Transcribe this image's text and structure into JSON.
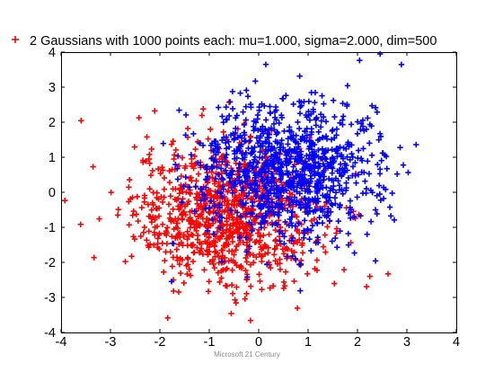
{
  "chart_data": {
    "type": "scatter",
    "title": "",
    "xlabel": "",
    "ylabel": "",
    "xlim": [
      -4,
      4
    ],
    "ylim": [
      -4,
      4
    ],
    "xticks": [
      "-4",
      "-3",
      "-2",
      "-1",
      "0",
      "1",
      "2",
      "3",
      "4"
    ],
    "yticks": [
      "4",
      "3",
      "2",
      "1",
      "0",
      "-1",
      "-2",
      "-3",
      "-4"
    ],
    "grid": false,
    "legend_position": "top-left",
    "marker": "+",
    "series": [
      {
        "name": "2 Gaussians with 1000 points each: mu=1.000, sigma=2.000, dim=500",
        "color": "#ff0000",
        "points_per_cluster": 1000,
        "center": [
          -0.6,
          -0.6
        ],
        "spread": [
          0.95,
          1.0
        ],
        "approximated_points": true
      },
      {
        "name": "",
        "color": "#0000ff",
        "points_per_cluster": 1000,
        "center": [
          0.6,
          0.6
        ],
        "spread": [
          0.95,
          1.0
        ],
        "approximated_points": true
      }
    ]
  },
  "footer": {
    "text": "Microsoft 21 Century"
  }
}
